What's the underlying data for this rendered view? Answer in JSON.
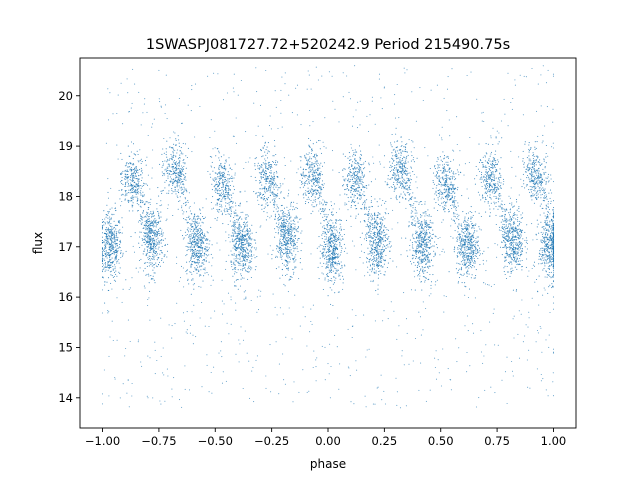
{
  "chart_data": {
    "type": "scatter",
    "title": "1SWASPJ081727.72+520242.9 Period 215490.75s",
    "xlabel": "phase",
    "ylabel": "flux",
    "xlim": [
      -1.1,
      1.1
    ],
    "ylim": [
      13.4,
      20.75
    ],
    "xticks": [
      -1.0,
      -0.75,
      -0.5,
      -0.25,
      0.0,
      0.25,
      0.5,
      0.75,
      1.0
    ],
    "xtick_labels": [
      "−1.00",
      "−0.75",
      "−0.50",
      "−0.25",
      "0.00",
      "0.25",
      "0.50",
      "0.75",
      "1.00"
    ],
    "yticks": [
      14,
      15,
      16,
      17,
      18,
      19,
      20
    ],
    "ytick_labels": [
      "14",
      "15",
      "16",
      "17",
      "18",
      "19",
      "20"
    ],
    "grid": false,
    "point_color": "#1f77b4",
    "series": [
      {
        "x_range": [
          -1.0,
          1.0
        ],
        "clusters": [
          {
            "x": -0.965,
            "y": 17.0
          },
          {
            "x": -0.87,
            "y": 18.3
          },
          {
            "x": -0.78,
            "y": 17.15
          },
          {
            "x": -0.68,
            "y": 18.5
          },
          {
            "x": -0.58,
            "y": 17.05
          },
          {
            "x": -0.47,
            "y": 18.25
          },
          {
            "x": -0.38,
            "y": 17.0
          },
          {
            "x": -0.27,
            "y": 18.35
          },
          {
            "x": -0.18,
            "y": 17.15
          },
          {
            "x": -0.07,
            "y": 18.4
          },
          {
            "x": 0.02,
            "y": 16.95
          },
          {
            "x": 0.12,
            "y": 18.35
          },
          {
            "x": 0.22,
            "y": 17.1
          },
          {
            "x": 0.32,
            "y": 18.55
          },
          {
            "x": 0.42,
            "y": 17.05
          },
          {
            "x": 0.52,
            "y": 18.25
          },
          {
            "x": 0.62,
            "y": 17.0
          },
          {
            "x": 0.72,
            "y": 18.35
          },
          {
            "x": 0.82,
            "y": 17.15
          },
          {
            "x": 0.92,
            "y": 18.45
          },
          {
            "x": 0.985,
            "y": 17.0
          }
        ]
      }
    ]
  }
}
